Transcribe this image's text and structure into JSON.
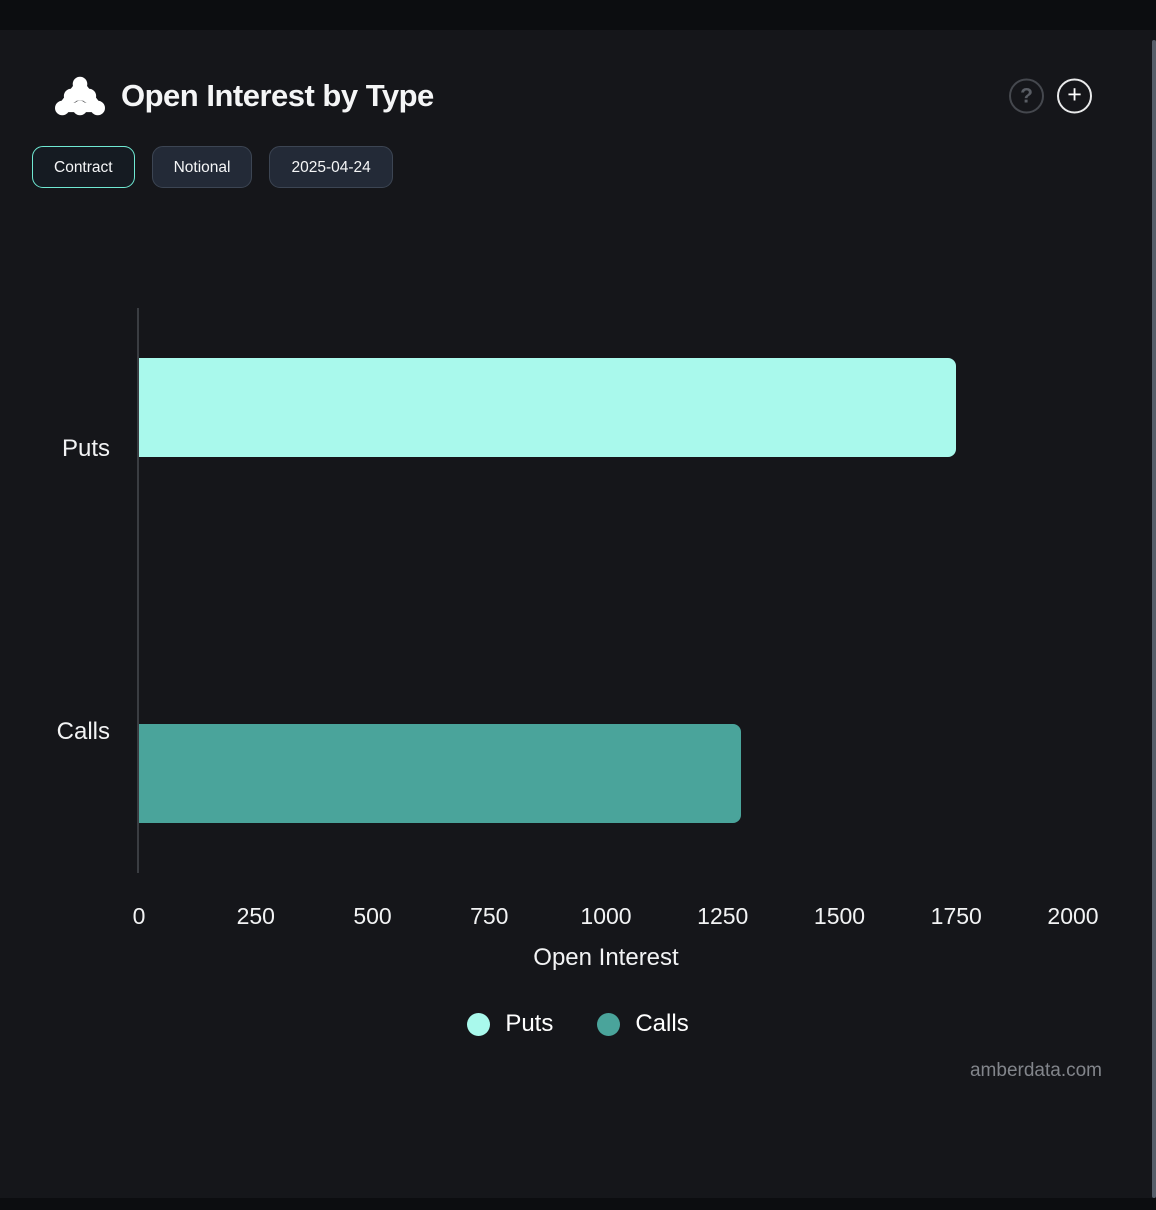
{
  "header": {
    "title": "Open Interest by Type",
    "logo_name": "amberdata-logo",
    "help_label": "?",
    "add_label": "+"
  },
  "toolbar": {
    "buttons": [
      {
        "label": "Contract",
        "active": true
      },
      {
        "label": "Notional",
        "active": false
      },
      {
        "label": "2025-04-24",
        "active": false
      }
    ]
  },
  "chart_data": {
    "type": "bar",
    "orientation": "horizontal",
    "title": "Open Interest by Type",
    "categories": [
      "Puts",
      "Calls"
    ],
    "values": [
      1750,
      1290
    ],
    "colors": [
      "#a9f9ec",
      "#4aa49b"
    ],
    "xlabel": "Open Interest",
    "ylabel": "",
    "xlim": [
      0,
      2000
    ],
    "xticks": [
      0,
      250,
      500,
      750,
      1000,
      1250,
      1500,
      1750,
      2000
    ],
    "grid": false,
    "legend": {
      "position": "bottom",
      "entries": [
        {
          "label": "Puts",
          "color": "#a9f9ec"
        },
        {
          "label": "Calls",
          "color": "#4aa49b"
        }
      ]
    }
  },
  "watermark": "amberdata.com",
  "colors": {
    "background": "#15161a",
    "accent_mint": "#6fe9d3",
    "puts_bar": "#a9f9ec",
    "calls_bar": "#4aa49b"
  }
}
